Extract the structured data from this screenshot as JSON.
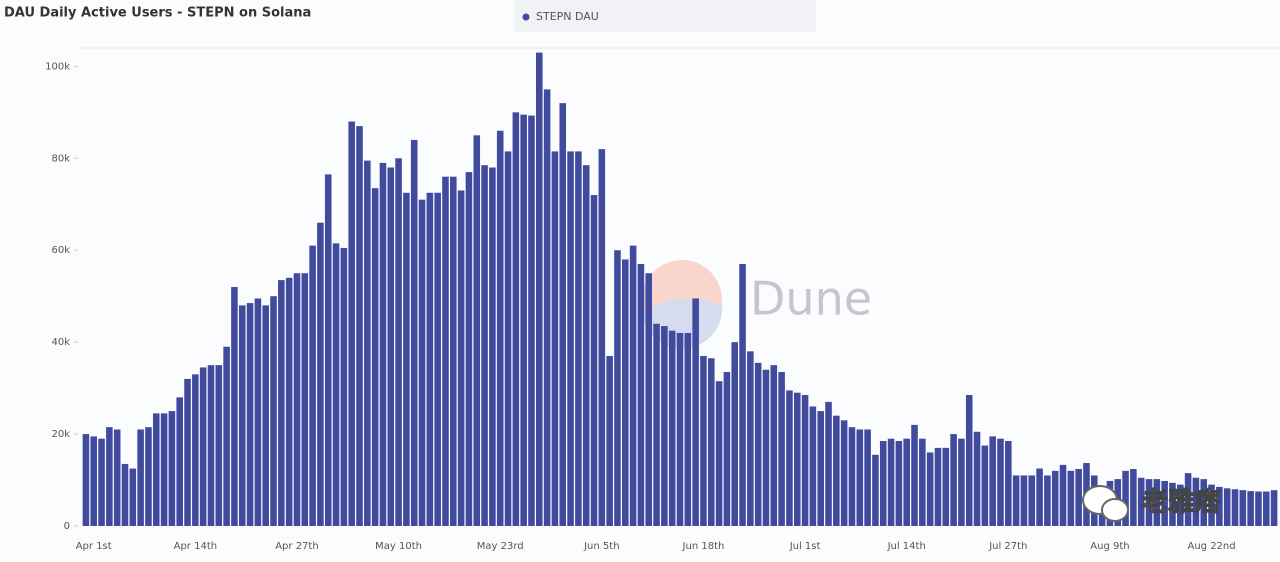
{
  "chart_data": {
    "type": "bar",
    "title": "DAU Daily Active Users - STEPN on Solana",
    "series": [
      {
        "name": "STEPN DAU",
        "color": "#414b9e",
        "values": [
          20000,
          19500,
          19000,
          21500,
          21000,
          13500,
          12500,
          21000,
          21500,
          24500,
          24500,
          25000,
          28000,
          32000,
          33000,
          34500,
          35000,
          35000,
          39000,
          52000,
          48000,
          48500,
          49500,
          48000,
          50000,
          53500,
          54000,
          55000,
          55000,
          61000,
          66000,
          76500,
          61500,
          60500,
          88000,
          87000,
          79500,
          73500,
          79000,
          78000,
          80000,
          72500,
          84000,
          71000,
          72500,
          72500,
          76000,
          76000,
          73000,
          77000,
          85000,
          78500,
          78000,
          86000,
          81500,
          90000,
          89500,
          89300,
          103000,
          95000,
          81500,
          92000,
          81500,
          81500,
          78500,
          72000,
          82000,
          37000,
          60000,
          58000,
          61000,
          57000,
          55000,
          44000,
          43500,
          42500,
          42000,
          42000,
          49500,
          37000,
          36500,
          31500,
          33500,
          40000,
          57000,
          38000,
          35500,
          34000,
          35000,
          33500,
          29500,
          29000,
          28500,
          26000,
          25000,
          27000,
          24000,
          23000,
          21500,
          21000,
          21000,
          15500,
          18500,
          19000,
          18500,
          19000,
          22000,
          19000,
          16000,
          17000,
          17000,
          20000,
          19000,
          28500,
          20500,
          17500,
          19500,
          19000,
          18500,
          11000,
          11000,
          11000,
          12500,
          11000,
          12000,
          13300,
          12000,
          12400,
          13700,
          11000,
          7500,
          9800,
          10200,
          12000,
          12400,
          10500,
          10200,
          10200,
          9800,
          9400,
          9000,
          11500,
          10500,
          10200,
          9000,
          8500,
          8200,
          8000,
          7800,
          7600,
          7500,
          7500,
          7800
        ]
      }
    ],
    "categories": [
      null,
      "Apr 1st",
      null,
      null,
      null,
      null,
      null,
      null,
      null,
      null,
      null,
      null,
      null,
      null,
      "Apr 14th",
      null,
      null,
      null,
      null,
      null,
      null,
      null,
      null,
      null,
      null,
      null,
      null,
      "Apr 27th",
      null,
      null,
      null,
      null,
      null,
      null,
      null,
      null,
      null,
      null,
      null,
      null,
      "May 10th",
      null,
      null,
      null,
      null,
      null,
      null,
      null,
      null,
      null,
      null,
      null,
      null,
      "May 23rd",
      null,
      null,
      null,
      null,
      null,
      null,
      null,
      null,
      null,
      null,
      null,
      null,
      "Jun 5th",
      null,
      null,
      null,
      null,
      null,
      null,
      null,
      null,
      null,
      null,
      null,
      null,
      "Jun 18th",
      null,
      null,
      null,
      null,
      null,
      null,
      null,
      null,
      null,
      null,
      null,
      null,
      "Jul 1st",
      null,
      null,
      null,
      null,
      null,
      null,
      null,
      null,
      null,
      null,
      null,
      null,
      "Jul 14th",
      null,
      null,
      null,
      null,
      null,
      null,
      null,
      null,
      null,
      null,
      null,
      null,
      "Jul 27th",
      null,
      null,
      null,
      null,
      null,
      null,
      null,
      null,
      null,
      null,
      null,
      null,
      "Aug 9th",
      null,
      null,
      null,
      null,
      null,
      null,
      null,
      null,
      null,
      null,
      null,
      null,
      "Aug 22nd",
      null,
      null,
      null,
      null,
      null,
      null,
      null,
      null
    ],
    "ylim": [
      0,
      104000
    ],
    "yticks": [
      {
        "value": 0,
        "label": "0"
      },
      {
        "value": 20000,
        "label": "20k"
      },
      {
        "value": 40000,
        "label": "40k"
      },
      {
        "value": 60000,
        "label": "60k"
      },
      {
        "value": 80000,
        "label": "80k"
      },
      {
        "value": 100000,
        "label": "100k"
      }
    ],
    "grid": false,
    "watermarks": [
      "Dune",
      "老雅痞"
    ]
  }
}
